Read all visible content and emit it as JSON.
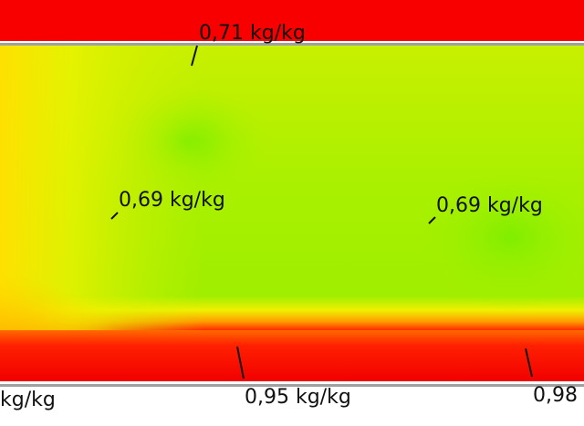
{
  "annotations": [
    {
      "label": "0,71 kg/kg"
    },
    {
      "label": "0,69 kg/kg"
    },
    {
      "label": "0,69 kg/kg"
    },
    {
      "label": "0,95 kg/kg"
    },
    {
      "label": "kg/kg"
    },
    {
      "label": "0,98"
    }
  ]
}
